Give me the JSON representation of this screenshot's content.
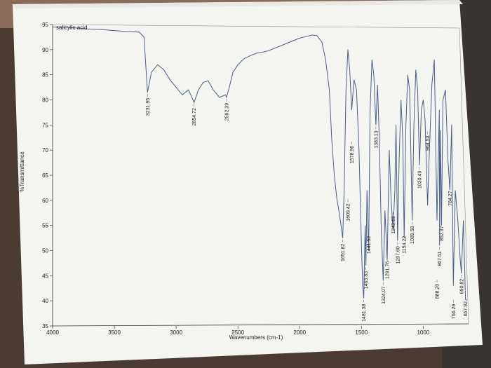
{
  "chart_data": {
    "type": "line",
    "title": "salicylic acid",
    "xlabel": "Wavenumbers (cm-1)",
    "ylabel": "%Transmittance",
    "xlim": [
      4000,
      650
    ],
    "ylim": [
      35,
      95
    ],
    "x_ticks": [
      "4000",
      "3500",
      "3000",
      "2500",
      "2000",
      "1500",
      "1000"
    ],
    "x_tick_values": [
      4000,
      3500,
      3000,
      2500,
      2000,
      1500,
      1000
    ],
    "y_ticks": [
      "35",
      "40",
      "45",
      "50",
      "55",
      "60",
      "65",
      "70",
      "75",
      "80",
      "85",
      "90",
      "95"
    ],
    "y_tick_values": [
      35,
      40,
      45,
      50,
      55,
      60,
      65,
      70,
      75,
      80,
      85,
      90,
      95
    ],
    "grid": false,
    "series": [
      {
        "x": [
          4000,
          3900,
          3800,
          3700,
          3600,
          3500,
          3400,
          3300,
          3260,
          3231.95,
          3200,
          3150,
          3100,
          3050,
          3000,
          2950,
          2900,
          2854.72,
          2820,
          2780,
          2740,
          2700,
          2650,
          2600,
          2592.39,
          2570,
          2540,
          2500,
          2450,
          2400,
          2350,
          2300,
          2250,
          2200,
          2150,
          2100,
          2050,
          2000,
          1950,
          1900,
          1860,
          1820,
          1790,
          1760,
          1740,
          1720,
          1700,
          1680,
          1665,
          1651.82,
          1640,
          1625,
          1609.42,
          1595,
          1578.96,
          1560,
          1540,
          1520,
          1500,
          1490,
          1481.38,
          1470,
          1463.83,
          1455,
          1441.52,
          1430,
          1415,
          1400,
          1383.13,
          1370,
          1355,
          1340,
          1324.07,
          1310,
          1291.76,
          1275,
          1260,
          1243.69,
          1230,
          1220,
          1207.6,
          1195,
          1180,
          1165,
          1154.22,
          1140,
          1125,
          1110,
          1089.58,
          1075,
          1060,
          1045,
          1030.49,
          1015,
          1000,
          985,
          964.53,
          950,
          930,
          910,
          888.2,
          870,
          867.51,
          860,
          852.37,
          840,
          820,
          800,
          784.27,
          770,
          756.29,
          740,
          720,
          700,
          690.82,
          675,
          657.92,
          650
        ],
        "y": [
          94.5,
          94.5,
          94.3,
          94.1,
          94.0,
          93.8,
          93.6,
          93.5,
          92.5,
          81.5,
          85.5,
          87.0,
          86.0,
          84.0,
          82.5,
          81.0,
          82.0,
          79.5,
          82.0,
          83.5,
          83.8,
          82.0,
          80.5,
          81.0,
          80.5,
          82.5,
          85.5,
          87.0,
          88.2,
          88.8,
          89.3,
          89.5,
          89.8,
          90.3,
          90.8,
          91.3,
          91.8,
          92.3,
          92.6,
          92.9,
          92.8,
          91.5,
          88.0,
          82.0,
          72.0,
          65.0,
          60.5,
          57.5,
          55.0,
          52.5,
          62.0,
          82.0,
          90.0,
          86.0,
          78.0,
          84.0,
          82.0,
          70.0,
          51.0,
          43.0,
          40.5,
          55.0,
          47.0,
          62.0,
          50.0,
          78.0,
          88.0,
          85.0,
          75.0,
          83.0,
          72.0,
          54.5,
          44.0,
          58.0,
          48.0,
          70.0,
          60.0,
          54.0,
          62.0,
          75.0,
          52.0,
          68.0,
          80.0,
          72.0,
          52.5,
          75.0,
          85.0,
          82.0,
          56.0,
          75.0,
          86.0,
          82.0,
          67.0,
          78.0,
          80.0,
          76.0,
          59.0,
          70.0,
          83.0,
          88.0,
          56.0,
          78.0,
          51.0,
          74.0,
          55.0,
          80.0,
          82.0,
          68.0,
          62.0,
          75.0,
          43.0,
          62.0,
          56.0,
          48.0,
          45.5,
          56.0,
          40.5,
          40.0
        ]
      }
    ],
    "peak_labels": [
      {
        "x": 3231.95,
        "y": 81.5,
        "text": "3231.95"
      },
      {
        "x": 2854.72,
        "y": 79.5,
        "text": "2854.72"
      },
      {
        "x": 2592.39,
        "y": 80.5,
        "text": "2592.39"
      },
      {
        "x": 1651.82,
        "y": 52.5,
        "text": "1651.82"
      },
      {
        "x": 1609.42,
        "y": 60.5,
        "text": "1609.42"
      },
      {
        "x": 1578.96,
        "y": 72.0,
        "text": "1578.96"
      },
      {
        "x": 1481.38,
        "y": 40.5,
        "text": "1481.38"
      },
      {
        "x": 1463.83,
        "y": 47.0,
        "text": "1463.83"
      },
      {
        "x": 1441.52,
        "y": 54.0,
        "text": "1441.52"
      },
      {
        "x": 1383.13,
        "y": 75.0,
        "text": "1383.13"
      },
      {
        "x": 1324.07,
        "y": 44.0,
        "text": "1324.07"
      },
      {
        "x": 1291.76,
        "y": 49.0,
        "text": "1291.76"
      },
      {
        "x": 1243.69,
        "y": 58.0,
        "text": "1243.69"
      },
      {
        "x": 1207.6,
        "y": 52.0,
        "text": "1207.60"
      },
      {
        "x": 1154.22,
        "y": 54.0,
        "text": "1154.22"
      },
      {
        "x": 1089.58,
        "y": 56.0,
        "text": "1089.58"
      },
      {
        "x": 1030.49,
        "y": 67.0,
        "text": "1030.49"
      },
      {
        "x": 964.53,
        "y": 74.0,
        "text": "964.53"
      },
      {
        "x": 888.2,
        "y": 44.5,
        "text": "888.20"
      },
      {
        "x": 867.51,
        "y": 51.0,
        "text": "867.51"
      },
      {
        "x": 852.37,
        "y": 56.0,
        "text": "852.37"
      },
      {
        "x": 784.27,
        "y": 63.0,
        "text": "784.27"
      },
      {
        "x": 756.29,
        "y": 40.5,
        "text": "756.29"
      },
      {
        "x": 690.82,
        "y": 45.5,
        "text": "690.82"
      },
      {
        "x": 657.92,
        "y": 41.0,
        "text": "657.92"
      }
    ]
  }
}
